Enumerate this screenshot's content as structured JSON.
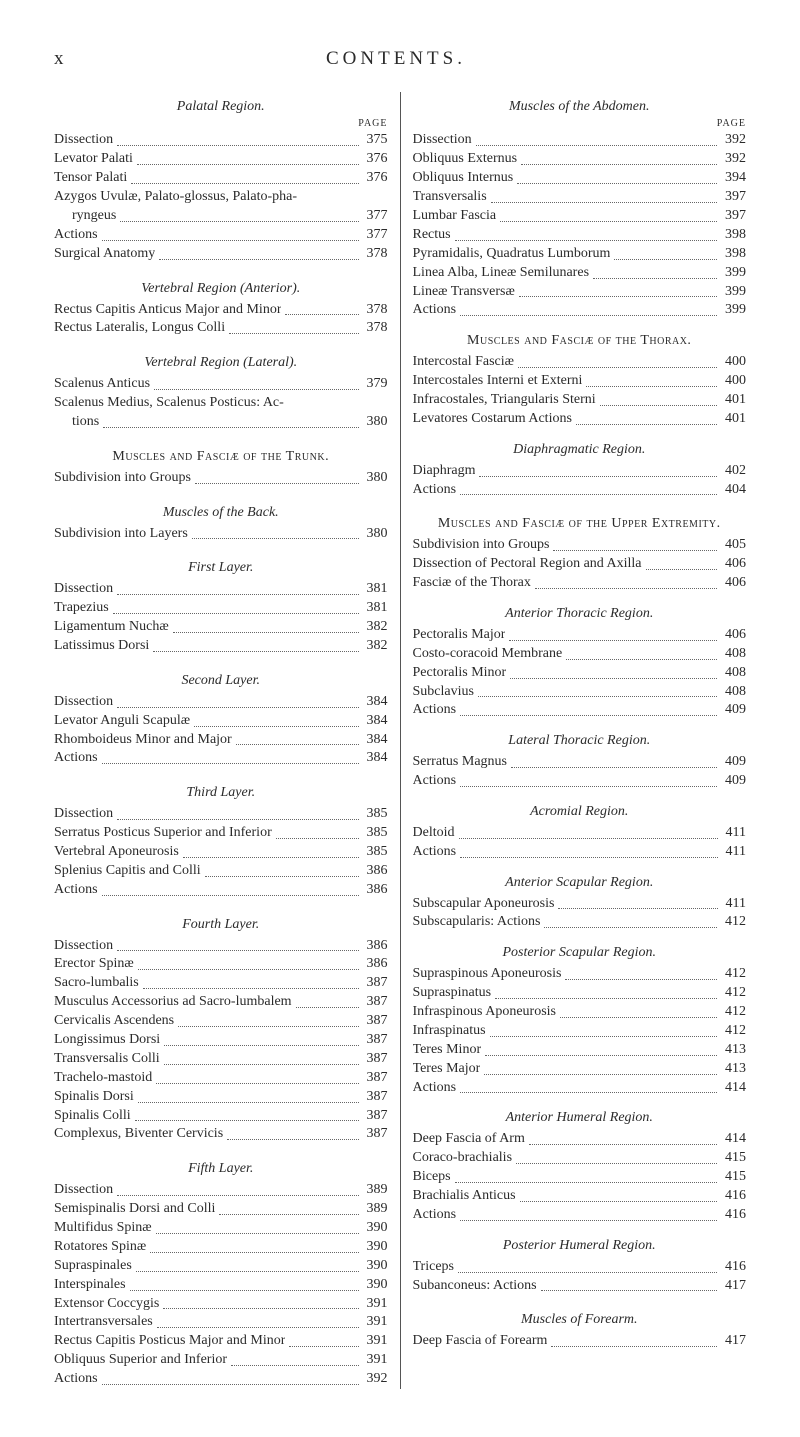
{
  "header": {
    "pageNumber": "x",
    "title": "CONTENTS."
  },
  "pageWord": "PAGE",
  "layout": {
    "pageWidth": 800,
    "pageHeight": 1350,
    "colors": {
      "background": "#ffffff",
      "text": "#2a2a2a",
      "divider": "#555555",
      "dots": "#666666"
    },
    "fonts": {
      "body": "Times New Roman",
      "baseSize": 14,
      "headerSize": 19
    }
  },
  "left": [
    {
      "type": "sectionItalic",
      "text": "Palatal Region."
    },
    {
      "type": "pagelabel"
    },
    {
      "type": "entry",
      "label": "Dissection",
      "page": "375"
    },
    {
      "type": "entry",
      "label": "Levator Palati",
      "page": "376"
    },
    {
      "type": "entry",
      "label": "Tensor Palati",
      "page": "376"
    },
    {
      "type": "entry-nopage",
      "label": "Azygos Uvulæ, Palato-glossus, Palato-pha-"
    },
    {
      "type": "entry",
      "indent": true,
      "label": "ryngeus",
      "page": "377"
    },
    {
      "type": "entry",
      "label": "Actions",
      "page": "377"
    },
    {
      "type": "entry",
      "label": "Surgical Anatomy",
      "page": "378"
    },
    {
      "type": "gap-md"
    },
    {
      "type": "sectionItalic",
      "text": "Vertebral Region (Anterior)."
    },
    {
      "type": "entry",
      "label": "Rectus Capitis Anticus Major and Minor",
      "page": "378"
    },
    {
      "type": "entry",
      "label": "Rectus Lateralis, Longus Colli",
      "page": "378"
    },
    {
      "type": "gap-md"
    },
    {
      "type": "sectionItalic",
      "text": "Vertebral Region (Lateral)."
    },
    {
      "type": "entry",
      "label": "Scalenus Anticus",
      "page": "379"
    },
    {
      "type": "entry-nopage",
      "label": "Scalenus Medius, Scalenus Posticus: Ac-"
    },
    {
      "type": "entry",
      "indent": true,
      "label": "tions",
      "page": "380"
    },
    {
      "type": "gap-md"
    },
    {
      "type": "sectionCaps",
      "text": "Muscles and Fasciæ of the Trunk."
    },
    {
      "type": "entry",
      "label": "Subdivision into Groups",
      "page": "380"
    },
    {
      "type": "gap-md"
    },
    {
      "type": "sectionItalic",
      "text": "Muscles of the Back."
    },
    {
      "type": "entry",
      "label": "Subdivision into Layers",
      "page": "380"
    },
    {
      "type": "gap-md"
    },
    {
      "type": "sectionItalic",
      "text": "First Layer."
    },
    {
      "type": "entry",
      "label": "Dissection",
      "page": "381"
    },
    {
      "type": "entry",
      "label": "Trapezius",
      "page": "381"
    },
    {
      "type": "entry",
      "label": "Ligamentum Nuchæ",
      "page": "382"
    },
    {
      "type": "entry",
      "label": "Latissimus Dorsi",
      "page": "382"
    },
    {
      "type": "gap-md"
    },
    {
      "type": "sectionItalic",
      "text": "Second Layer."
    },
    {
      "type": "entry",
      "label": "Dissection",
      "page": "384"
    },
    {
      "type": "entry",
      "label": "Levator Anguli Scapulæ",
      "page": "384"
    },
    {
      "type": "entry",
      "label": "Rhomboideus Minor and Major",
      "page": "384"
    },
    {
      "type": "entry",
      "label": "Actions",
      "page": "384"
    },
    {
      "type": "gap-md"
    },
    {
      "type": "sectionItalic",
      "text": "Third Layer."
    },
    {
      "type": "entry",
      "label": "Dissection",
      "page": "385"
    },
    {
      "type": "entry",
      "label": "Serratus Posticus Superior and Inferior",
      "page": "385"
    },
    {
      "type": "entry",
      "label": "Vertebral Aponeurosis",
      "page": "385"
    },
    {
      "type": "entry",
      "label": "Splenius Capitis and Colli",
      "page": "386"
    },
    {
      "type": "entry",
      "label": "Actions",
      "page": "386"
    },
    {
      "type": "gap-md"
    },
    {
      "type": "sectionItalic",
      "text": "Fourth Layer."
    },
    {
      "type": "entry",
      "label": "Dissection",
      "page": "386"
    },
    {
      "type": "entry",
      "label": "Erector Spinæ",
      "page": "386"
    },
    {
      "type": "entry",
      "label": "Sacro-lumbalis",
      "page": "387"
    },
    {
      "type": "entry",
      "label": "Musculus Accessorius ad Sacro-lumbalem",
      "page": "387"
    },
    {
      "type": "entry",
      "label": "Cervicalis Ascendens",
      "page": "387"
    },
    {
      "type": "entry",
      "label": "Longissimus Dorsi",
      "page": "387"
    },
    {
      "type": "entry",
      "label": "Transversalis Colli",
      "page": "387"
    },
    {
      "type": "entry",
      "label": "Trachelo-mastoid",
      "page": "387"
    },
    {
      "type": "entry",
      "label": "Spinalis Dorsi",
      "page": "387"
    },
    {
      "type": "entry",
      "label": "Spinalis Colli",
      "page": "387"
    },
    {
      "type": "entry",
      "label": "Complexus, Biventer Cervicis",
      "page": "387"
    },
    {
      "type": "gap-md"
    },
    {
      "type": "sectionItalic",
      "text": "Fifth Layer."
    },
    {
      "type": "entry",
      "label": "Dissection",
      "page": "389"
    },
    {
      "type": "entry",
      "label": "Semispinalis Dorsi and Colli",
      "page": "389"
    },
    {
      "type": "entry",
      "label": "Multifidus Spinæ",
      "page": "390"
    },
    {
      "type": "entry",
      "label": "Rotatores Spinæ",
      "page": "390"
    },
    {
      "type": "entry",
      "label": "Supraspinales",
      "page": "390"
    },
    {
      "type": "entry",
      "label": "Interspinales",
      "page": "390"
    },
    {
      "type": "entry",
      "label": "Extensor Coccygis",
      "page": "391"
    },
    {
      "type": "entry",
      "label": "Intertransversales",
      "page": "391"
    },
    {
      "type": "entry",
      "label": "Rectus Capitis Posticus Major and Minor",
      "page": "391"
    },
    {
      "type": "entry",
      "label": "Obliquus Superior and Inferior",
      "page": "391"
    },
    {
      "type": "entry",
      "label": "Actions",
      "page": "392"
    }
  ],
  "right": [
    {
      "type": "sectionItalic",
      "text": "Muscles of the Abdomen."
    },
    {
      "type": "pagelabel"
    },
    {
      "type": "entry",
      "label": "Dissection",
      "page": "392"
    },
    {
      "type": "entry",
      "label": "Obliquus Externus",
      "page": "392"
    },
    {
      "type": "entry",
      "label": "Obliquus Internus",
      "page": "394"
    },
    {
      "type": "entry",
      "label": "Transversalis",
      "page": "397"
    },
    {
      "type": "entry",
      "label": "Lumbar Fascia",
      "page": "397"
    },
    {
      "type": "entry",
      "label": "Rectus",
      "page": "398"
    },
    {
      "type": "entry",
      "label": "Pyramidalis, Quadratus Lumborum",
      "page": "398"
    },
    {
      "type": "entry",
      "label": "Linea Alba, Lineæ Semilunares",
      "page": "399"
    },
    {
      "type": "entry",
      "label": "Lineæ Transversæ",
      "page": "399"
    },
    {
      "type": "entry",
      "label": "Actions",
      "page": "399"
    },
    {
      "type": "gap-sm"
    },
    {
      "type": "sectionCaps",
      "text": "Muscles and Fasciæ of the Thorax."
    },
    {
      "type": "entry",
      "label": "Intercostal Fasciæ",
      "page": "400"
    },
    {
      "type": "entry",
      "label": "Intercostales Interni et Externi",
      "page": "400"
    },
    {
      "type": "entry",
      "label": "Infracostales, Triangularis Sterni",
      "page": "401"
    },
    {
      "type": "entry",
      "label": "Levatores Costarum   Actions",
      "page": "401"
    },
    {
      "type": "gap-sm"
    },
    {
      "type": "sectionItalic",
      "text": "Diaphragmatic Region."
    },
    {
      "type": "entry",
      "label": "Diaphragm",
      "page": "402"
    },
    {
      "type": "entry",
      "label": "Actions",
      "page": "404"
    },
    {
      "type": "gap-md"
    },
    {
      "type": "sectionCaps",
      "text": "Muscles and Fasciæ of the Upper Extremity."
    },
    {
      "type": "entry",
      "label": "Subdivision into Groups",
      "page": "405"
    },
    {
      "type": "entry",
      "label": "Dissection of Pectoral Region and Axilla",
      "page": "406"
    },
    {
      "type": "entry",
      "label": "Fasciæ of the Thorax",
      "page": "406"
    },
    {
      "type": "gap-sm"
    },
    {
      "type": "sectionItalic",
      "text": "Anterior Thoracic Region."
    },
    {
      "type": "entry",
      "label": "Pectoralis Major",
      "page": "406"
    },
    {
      "type": "entry",
      "label": "Costo-coracoid Membrane",
      "page": "408"
    },
    {
      "type": "entry",
      "label": "Pectoralis Minor",
      "page": "408"
    },
    {
      "type": "entry",
      "label": "Subclavius",
      "page": "408"
    },
    {
      "type": "entry",
      "label": "Actions",
      "page": "409"
    },
    {
      "type": "gap-sm"
    },
    {
      "type": "sectionItalic",
      "text": "Lateral Thoracic Region."
    },
    {
      "type": "entry",
      "label": "Serratus Magnus",
      "page": "409"
    },
    {
      "type": "entry",
      "label": "Actions",
      "page": "409"
    },
    {
      "type": "gap-sm"
    },
    {
      "type": "sectionItalic",
      "text": "Acromial Region."
    },
    {
      "type": "entry",
      "label": "Deltoid",
      "page": "411"
    },
    {
      "type": "entry",
      "label": "Actions",
      "page": "411"
    },
    {
      "type": "gap-sm"
    },
    {
      "type": "sectionItalic",
      "text": "Anterior Scapular Region."
    },
    {
      "type": "entry",
      "label": "Subscapular Aponeurosis",
      "page": "411"
    },
    {
      "type": "entry",
      "label": "Subscapularis: Actions",
      "page": "412"
    },
    {
      "type": "gap-sm"
    },
    {
      "type": "sectionItalic",
      "text": "Posterior Scapular Region."
    },
    {
      "type": "entry",
      "label": "Supraspinous Aponeurosis",
      "page": "412"
    },
    {
      "type": "entry",
      "label": "Supraspinatus",
      "page": "412"
    },
    {
      "type": "entry",
      "label": "Infraspinous Aponeurosis",
      "page": "412"
    },
    {
      "type": "entry",
      "label": "Infraspinatus",
      "page": "412"
    },
    {
      "type": "entry",
      "label": "Teres Minor",
      "page": "413"
    },
    {
      "type": "entry",
      "label": "Teres Major",
      "page": "413"
    },
    {
      "type": "entry",
      "label": "Actions",
      "page": "414"
    },
    {
      "type": "gap-sm"
    },
    {
      "type": "sectionItalic",
      "text": "Anterior Humeral Region."
    },
    {
      "type": "entry",
      "label": "Deep Fascia of Arm",
      "page": "414"
    },
    {
      "type": "entry",
      "label": "Coraco-brachialis",
      "page": "415"
    },
    {
      "type": "entry",
      "label": "Biceps",
      "page": "415"
    },
    {
      "type": "entry",
      "label": "Brachialis Anticus",
      "page": "416"
    },
    {
      "type": "entry",
      "label": "Actions",
      "page": "416"
    },
    {
      "type": "gap-sm"
    },
    {
      "type": "sectionItalic",
      "text": "Posterior Humeral Region."
    },
    {
      "type": "entry",
      "label": "Triceps",
      "page": "416"
    },
    {
      "type": "entry",
      "label": "Subanconeus: Actions",
      "page": "417"
    },
    {
      "type": "gap-md"
    },
    {
      "type": "sectionItalic",
      "text": "Muscles of Forearm."
    },
    {
      "type": "entry",
      "label": "Deep Fascia of Forearm",
      "page": "417"
    }
  ]
}
